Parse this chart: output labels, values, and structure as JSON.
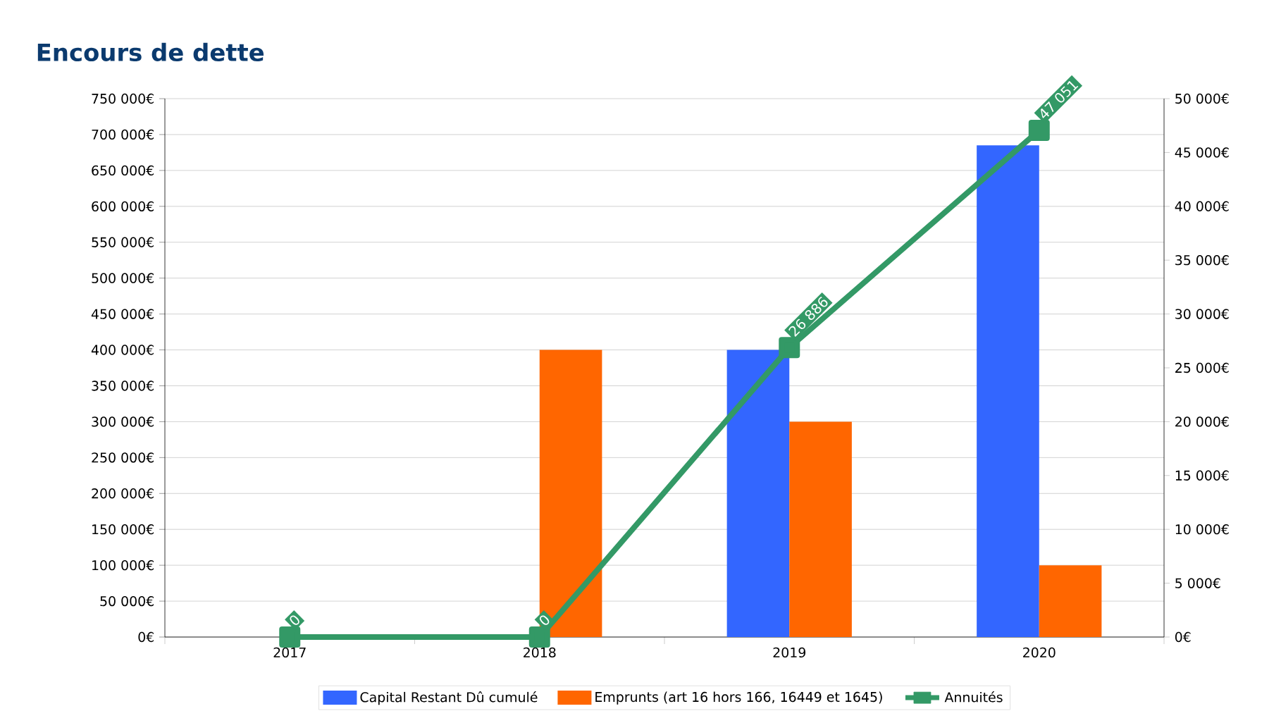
{
  "chart_data": {
    "type": "bar",
    "title": "Encours de dette",
    "categories": [
      "2017",
      "2018",
      "2019",
      "2020"
    ],
    "series": [
      {
        "name": "Capital Restant Dû cumulé",
        "color": "#3366ff",
        "values": [
          0,
          0,
          400000,
          685000
        ]
      },
      {
        "name": "Emprunts (art 16 hors 166, 16449 et 1645)",
        "color": "#ff6600",
        "values": [
          0,
          400000,
          300000,
          100000
        ]
      },
      {
        "name": "Annuités",
        "type": "line",
        "axis": "y2",
        "color": "#339966",
        "marker": "square",
        "values": [
          0,
          0,
          26886,
          47051
        ],
        "value_labels": [
          "0",
          "0",
          "26 886",
          "47 051"
        ]
      }
    ],
    "ylim": [
      0,
      750000
    ],
    "yticks": [
      {
        "value": 0,
        "label": "0€"
      },
      {
        "value": 50000,
        "label": "50 000€"
      },
      {
        "value": 100000,
        "label": "100 000€"
      },
      {
        "value": 150000,
        "label": "150 000€"
      },
      {
        "value": 200000,
        "label": "200 000€"
      },
      {
        "value": 250000,
        "label": "250 000€"
      },
      {
        "value": 300000,
        "label": "300 000€"
      },
      {
        "value": 350000,
        "label": "350 000€"
      },
      {
        "value": 400000,
        "label": "400 000€"
      },
      {
        "value": 450000,
        "label": "450 000€"
      },
      {
        "value": 500000,
        "label": "500 000€"
      },
      {
        "value": 550000,
        "label": "550 000€"
      },
      {
        "value": 600000,
        "label": "600 000€"
      },
      {
        "value": 650000,
        "label": "650 000€"
      },
      {
        "value": 700000,
        "label": "700 000€"
      },
      {
        "value": 750000,
        "label": "750 000€"
      }
    ],
    "y2lim": [
      0,
      50000
    ],
    "y2ticks": [
      {
        "value": 0,
        "label": "0€"
      },
      {
        "value": 5000,
        "label": "5 000€"
      },
      {
        "value": 10000,
        "label": "10 000€"
      },
      {
        "value": 15000,
        "label": "15 000€"
      },
      {
        "value": 20000,
        "label": "20 000€"
      },
      {
        "value": 25000,
        "label": "25 000€"
      },
      {
        "value": 30000,
        "label": "30 000€"
      },
      {
        "value": 35000,
        "label": "35 000€"
      },
      {
        "value": 40000,
        "label": "40 000€"
      },
      {
        "value": 45000,
        "label": "45 000€"
      },
      {
        "value": 50000,
        "label": "50 000€"
      }
    ],
    "grid": "y",
    "legend": "bottom"
  }
}
